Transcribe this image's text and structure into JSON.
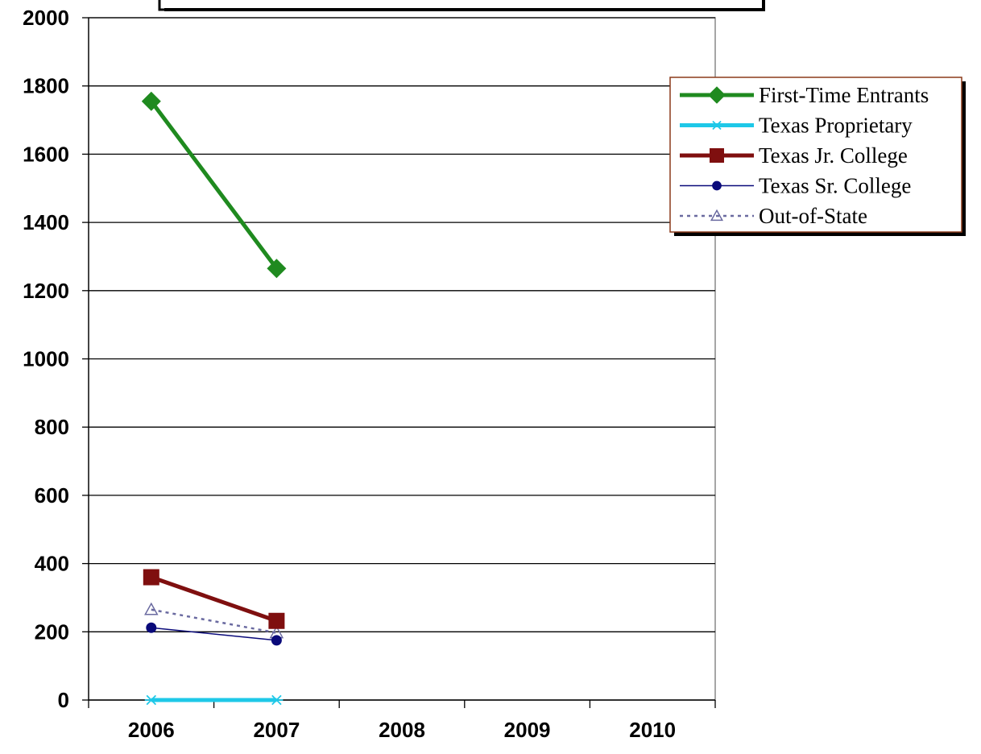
{
  "chart_data": {
    "type": "line",
    "title": "",
    "xlabel": "",
    "ylabel": "",
    "categories": [
      "2006",
      "2007",
      "2008",
      "2009",
      "2010"
    ],
    "ylim": [
      0,
      2000
    ],
    "yticks": [
      "0",
      "200",
      "400",
      "600",
      "800",
      "1000",
      "1200",
      "1400",
      "1600",
      "1800",
      "2000"
    ],
    "grid": true,
    "legend_position": "right",
    "series": [
      {
        "name": "First-Time Entrants",
        "values": [
          1755,
          1265,
          null,
          null,
          null
        ],
        "color": "#1f8a1f",
        "marker": "diamond",
        "line": "solid-thick"
      },
      {
        "name": "Texas Proprietary",
        "values": [
          0,
          0,
          null,
          null,
          null
        ],
        "color": "#1ec8e8",
        "marker": "asterisk",
        "line": "solid-thick"
      },
      {
        "name": "Texas Jr. College",
        "values": [
          360,
          232,
          null,
          null,
          null
        ],
        "color": "#7f0f0f",
        "marker": "square",
        "line": "solid-thick"
      },
      {
        "name": "Texas Sr. College",
        "values": [
          212,
          175,
          null,
          null,
          null
        ],
        "color": "#0a0a7a",
        "marker": "circle",
        "line": "solid-thin"
      },
      {
        "name": "Out-of-State",
        "values": [
          265,
          197,
          null,
          null,
          null
        ],
        "color": "#6a6aa0",
        "marker": "triangle",
        "line": "dotted"
      }
    ]
  },
  "legend": {
    "border_color": "#8b3a1a"
  }
}
